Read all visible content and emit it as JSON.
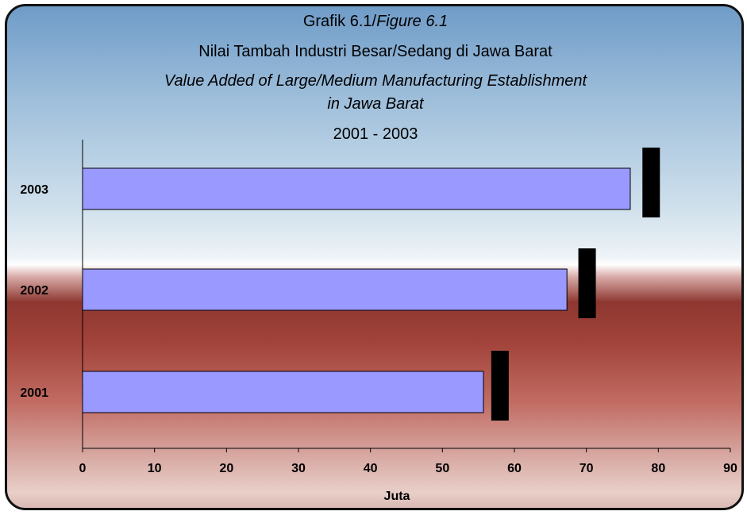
{
  "chart_data": {
    "type": "bar",
    "orientation": "horizontal",
    "title": {
      "line1_prefix": "Grafik 6.1/",
      "line1_italic": "Figure 6.1",
      "line2": "Nilai Tambah Industri Besar/Sedang di Jawa Barat",
      "line3": "Value Added of Large/Medium Manufacturing Establishment",
      "line4": "in Jawa Barat",
      "line5": "2001 - 2003"
    },
    "categories": [
      "2003",
      "2002",
      "2001"
    ],
    "series": [
      {
        "values": [
          76.1,
          67.3,
          55.7
        ],
        "color": "#9999ff"
      }
    ],
    "markers": [
      {
        "category": "2003",
        "value": 79.0
      },
      {
        "category": "2002",
        "value": 70.1
      },
      {
        "category": "2001",
        "value": 58.0
      }
    ],
    "marker_color": "#000000",
    "xlabel": "Juta",
    "ylabel": "",
    "xlim": [
      0,
      90
    ],
    "xticks": [
      "0",
      "10",
      "20",
      "30",
      "40",
      "50",
      "60",
      "70",
      "80",
      "90"
    ],
    "grid": false,
    "legend": "none",
    "colors": {
      "bar_fill": "#9999ff",
      "bar_stroke": "#000000",
      "axis": "#000000",
      "background_top": "#6f9cc8",
      "background_bottom": "#a2433a"
    }
  }
}
